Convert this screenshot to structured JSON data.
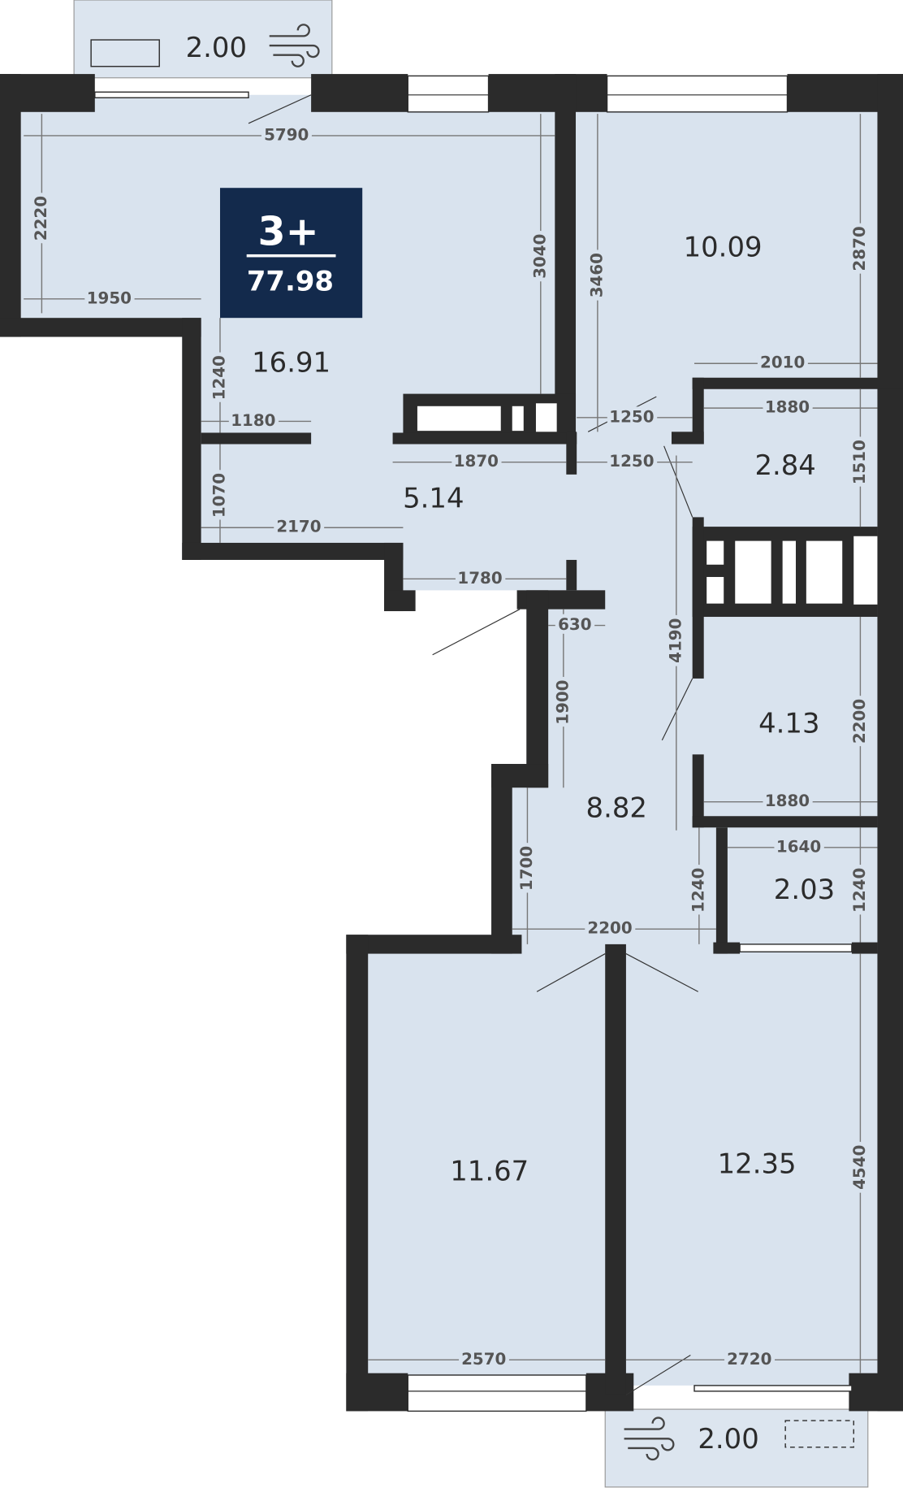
{
  "plan": {
    "rooms_label": "3+",
    "total_area": "77.98",
    "badge_color": "#132a4c",
    "room_fill": "#d9e3ee",
    "wall_color": "#2b2b2b",
    "rooms": [
      "16.91",
      "10.09",
      "2.84",
      "5.14",
      "4.13",
      "8.82",
      "2.03",
      "11.67",
      "12.35"
    ],
    "balconies": [
      "2.00",
      "2.00"
    ],
    "dimensions": [
      "5790",
      "2220",
      "1950",
      "3040",
      "3460",
      "2870",
      "2010",
      "1240",
      "1180",
      "1250",
      "1880",
      "1870",
      "1250",
      "1510",
      "1070",
      "2170",
      "1780",
      "630",
      "4190",
      "1900",
      "2200",
      "1880",
      "1640",
      "1700",
      "1240",
      "1240",
      "2200",
      "4540",
      "2570",
      "2720"
    ],
    "icons": [
      "wind-icon",
      "wind-icon"
    ]
  }
}
